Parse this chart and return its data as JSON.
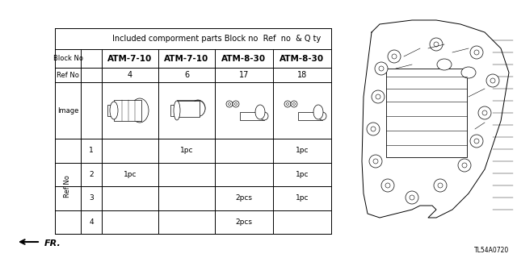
{
  "title": "Included comporment parts Block no  Ref  no  & Q ty",
  "bg_color": "#ffffff",
  "header_block_no": [
    "ATM-7-10",
    "ATM-7-10",
    "ATM-8-30",
    "ATM-8-30"
  ],
  "header_ref_no": [
    "4",
    "6",
    "17",
    "18"
  ],
  "qty_rows": [
    [
      "1",
      "",
      "1pc",
      "",
      "1pc"
    ],
    [
      "2",
      "1pc",
      "",
      "",
      "1pc"
    ],
    [
      "3",
      "",
      "",
      "2pcs",
      "1pc"
    ],
    [
      "4",
      "",
      "",
      "2pcs",
      ""
    ]
  ],
  "ref_no_label": "Ref No",
  "block_no_label": "Block No",
  "image_label": "Image",
  "diagram_code": "TL54A0720",
  "fr_label": "FR."
}
